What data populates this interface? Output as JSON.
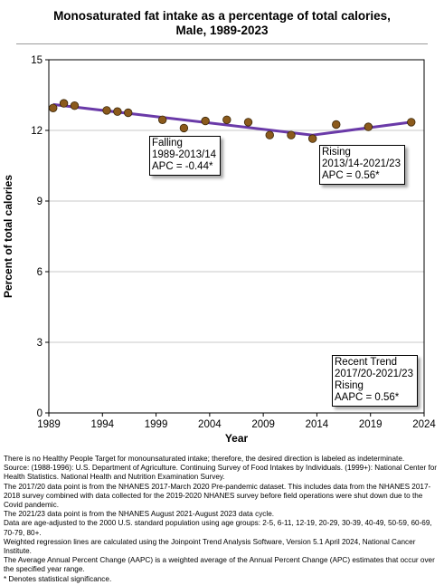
{
  "title_line1": "Monosaturated fat intake as a percentage of total calories,",
  "title_line2": "Male,  1989-2023",
  "chart_data": {
    "type": "scatter",
    "title": "Monosaturated fat intake as a percentage of total calories, Male,  1989-2023",
    "xlabel": "Year",
    "ylabel": "Percent of total calories",
    "xlim": [
      1989,
      2024
    ],
    "ylim": [
      0,
      15
    ],
    "x_ticks": [
      "1989",
      "1994",
      "1999",
      "2004",
      "2009",
      "2014",
      "2019",
      "2024"
    ],
    "x_tick_values": [
      1989,
      1994,
      1999,
      2004,
      2009,
      2014,
      2019,
      2024
    ],
    "y_ticks": [
      "0",
      "3",
      "6",
      "9",
      "12",
      "15"
    ],
    "y_tick_values": [
      0,
      3,
      6,
      9,
      12,
      15
    ],
    "grid": "horizontal",
    "points": [
      {
        "x": 1989.4,
        "y": 12.95
      },
      {
        "x": 1990.4,
        "y": 13.15
      },
      {
        "x": 1991.4,
        "y": 13.05
      },
      {
        "x": 1994.4,
        "y": 12.85
      },
      {
        "x": 1995.4,
        "y": 12.8
      },
      {
        "x": 1996.4,
        "y": 12.75
      },
      {
        "x": 1999.6,
        "y": 12.45
      },
      {
        "x": 2001.6,
        "y": 12.1
      },
      {
        "x": 2003.6,
        "y": 12.4
      },
      {
        "x": 2005.6,
        "y": 12.45
      },
      {
        "x": 2007.6,
        "y": 12.35
      },
      {
        "x": 2009.6,
        "y": 11.8
      },
      {
        "x": 2011.6,
        "y": 11.8
      },
      {
        "x": 2013.6,
        "y": 11.65
      },
      {
        "x": 2015.8,
        "y": 12.25
      },
      {
        "x": 2018.8,
        "y": 12.15
      },
      {
        "x": 2022.8,
        "y": 12.35
      }
    ],
    "trend_line": [
      {
        "x": 1989.4,
        "y": 13.1
      },
      {
        "x": 2013.6,
        "y": 11.8
      },
      {
        "x": 2022.8,
        "y": 12.35
      }
    ],
    "colors": {
      "point": "#8b5a1c",
      "point_edge": "#3a2608",
      "line": "#6a3aa8",
      "grid": "#c8c8c8"
    }
  },
  "annotations": {
    "falling": [
      "Falling",
      "1989-2013/14",
      "APC = -0.44*"
    ],
    "rising": [
      "Rising",
      "2013/14-2021/23",
      "APC =  0.56*"
    ],
    "recent": [
      "Recent Trend",
      "2017/20-2021/23",
      "Rising",
      "AAPC =  0.56*"
    ]
  },
  "footnotes": [
    "There is no Healthy People Target for monounsaturated intake; therefore, the desired direction is labeled as indeterminate.",
    "Source: (1988-1996): U.S. Department of Agriculture. Continuing Survey of Food Intakes by Individuals. (1999+): National Center for Health Statistics. National Health and Nutrition Examination Survey.",
    "The 2017/20 data point is from the NHANES 2017-March 2020 Pre-pandemic dataset. This includes data from the NHANES 2017-2018 survey combined with data collected for the 2019-2020 NHANES survey before field operations were shut down due to the Covid pandemic.",
    "The 2021/23 data point is from the NHANES August 2021-August 2023 data cycle.",
    "Data are age-adjusted to the 2000 U.S. standard population using age groups: 2-5, 6-11, 12-19, 20-29, 30-39, 40-49, 50-59, 60-69, 70-79, 80+.",
    "Weighted regression lines are calculated using the Joinpoint Trend Analysis Software, Version 5.1 April 2024, National Cancer Institute.",
    "The Average Annual Percent Change (AAPC) is a weighted average of the Annual Percent Change (APC) estimates that occur over the specified year range.",
    "* Denotes statistical significance."
  ]
}
